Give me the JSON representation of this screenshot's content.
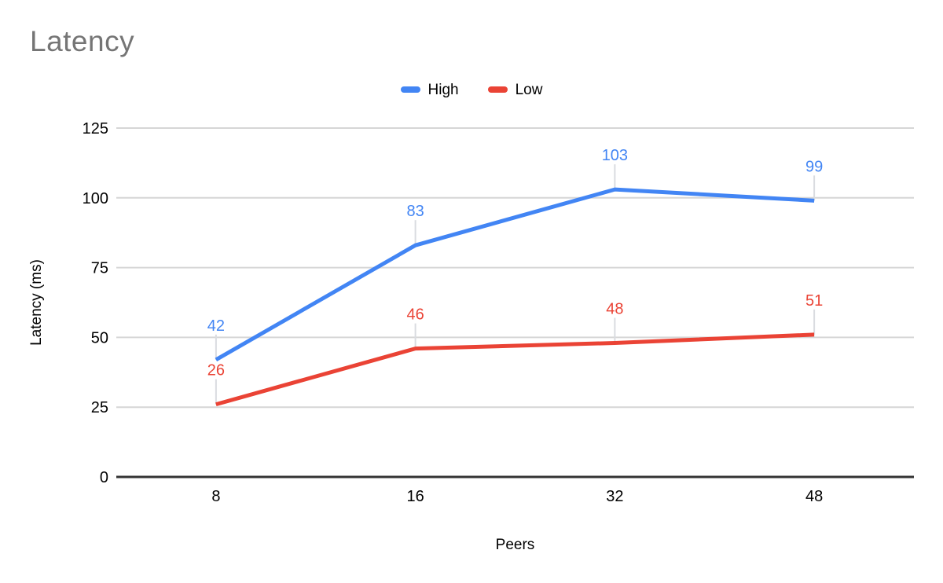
{
  "colors": {
    "background": "#ffffff",
    "title": "#757575",
    "axis_text": "#000000",
    "legend_text": "#000000",
    "grid": "#d6d6d6",
    "baseline": "#333333",
    "leader": "#dadce0"
  },
  "chart_data": {
    "type": "line",
    "title": "Latency",
    "xlabel": "Peers",
    "ylabel": "Latency (ms)",
    "categories": [
      "8",
      "16",
      "32",
      "48"
    ],
    "series": [
      {
        "name": "High",
        "color": "#4285f4",
        "values": [
          42,
          83,
          103,
          99
        ]
      },
      {
        "name": "Low",
        "color": "#ea4335",
        "values": [
          26,
          46,
          48,
          51
        ]
      }
    ],
    "ylim": [
      0,
      125
    ],
    "yticks": [
      0,
      25,
      50,
      75,
      100,
      125
    ],
    "grid": "horizontal",
    "legend_position": "top",
    "data_labels": true
  }
}
